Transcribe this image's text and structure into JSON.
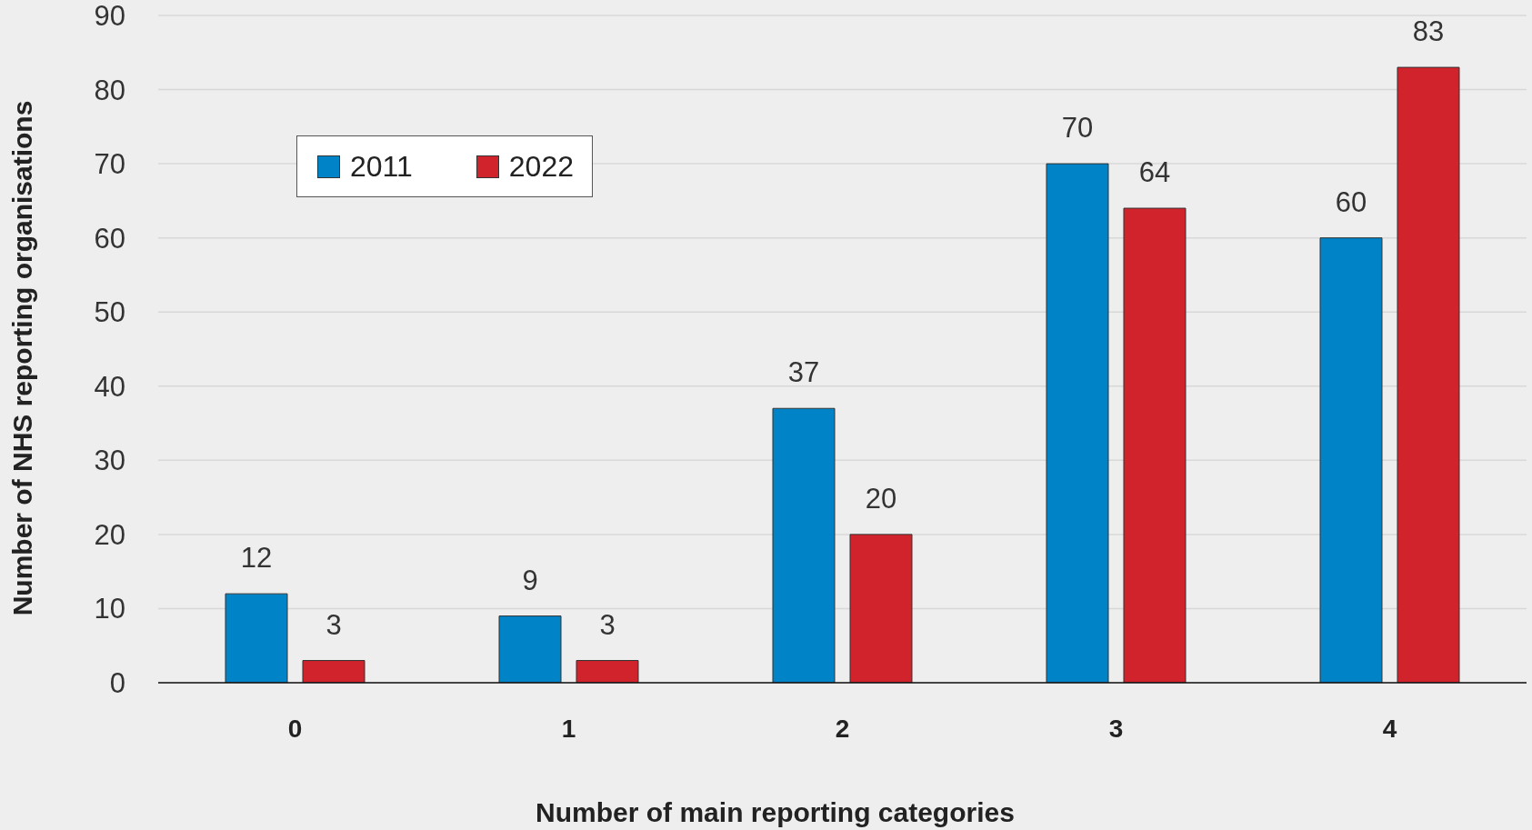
{
  "chart_data": {
    "type": "bar",
    "xlabel": "Number of main reporting categories",
    "ylabel": "Number of NHS reporting organisations",
    "categories": [
      "0",
      "1",
      "2",
      "3",
      "4"
    ],
    "series": [
      {
        "name": "2011",
        "color": "#0083c7",
        "values": [
          12,
          9,
          37,
          70,
          60
        ]
      },
      {
        "name": "2022",
        "color": "#d0232b",
        "values": [
          3,
          3,
          20,
          64,
          83
        ]
      }
    ],
    "ylim": [
      0,
      90
    ],
    "yticks": [
      0,
      10,
      20,
      30,
      40,
      50,
      60,
      70,
      80,
      90
    ],
    "grid": "y",
    "legend": "top left",
    "data_labels": true
  }
}
